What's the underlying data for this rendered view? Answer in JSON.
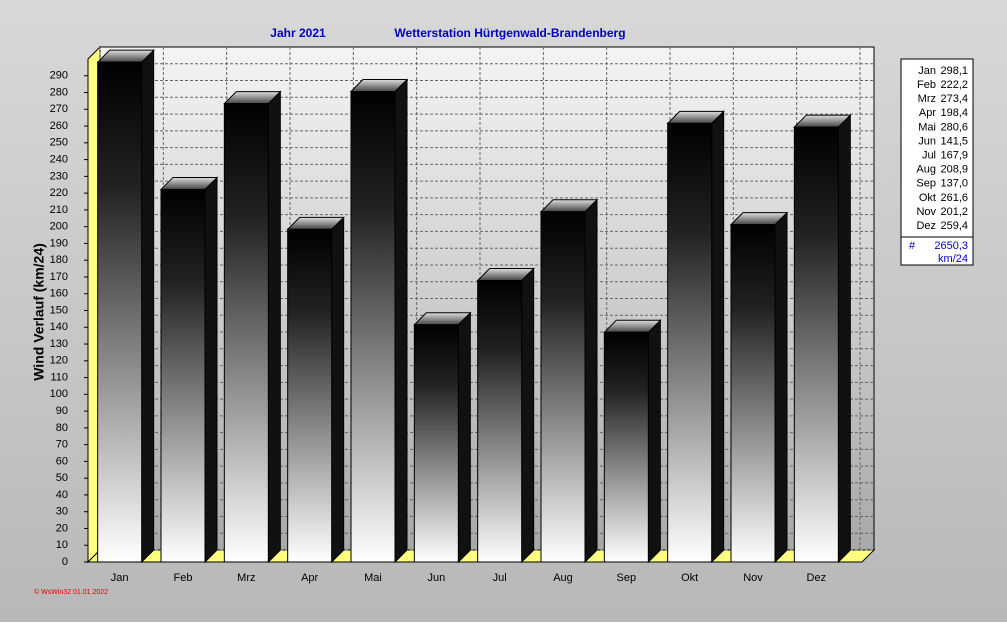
{
  "chart_data": {
    "type": "bar3d",
    "title": "Jahr  2021",
    "subtitle": "Wetterstation Hürtgenwald-Brandenberg",
    "y_label": "Wind Verlauf  (km/24)",
    "categories": [
      "Jan",
      "Feb",
      "Mrz",
      "Apr",
      "Mai",
      "Jun",
      "Jul",
      "Aug",
      "Sep",
      "Okt",
      "Nov",
      "Dez"
    ],
    "values": [
      298.1,
      222.2,
      273.4,
      198.4,
      280.6,
      141.5,
      167.9,
      208.9,
      137.0,
      261.6,
      201.2,
      259.4
    ],
    "value_labels": [
      "298,1",
      "222,2",
      "273,4",
      "198,4",
      "280,6",
      "141,5",
      "167,9",
      "208,9",
      "137,0",
      "261,6",
      "201,2",
      "259,4"
    ],
    "ylim": [
      0,
      300
    ],
    "yticks": [
      0,
      10,
      20,
      30,
      40,
      50,
      60,
      70,
      80,
      90,
      100,
      110,
      120,
      130,
      140,
      150,
      160,
      170,
      180,
      190,
      200,
      210,
      220,
      230,
      240,
      250,
      260,
      270,
      280,
      290
    ],
    "grid": true,
    "total": {
      "symbol": "#",
      "label": "2650,3",
      "unit": "km/24"
    },
    "footer": "© WsWin32  01.01.2022"
  }
}
